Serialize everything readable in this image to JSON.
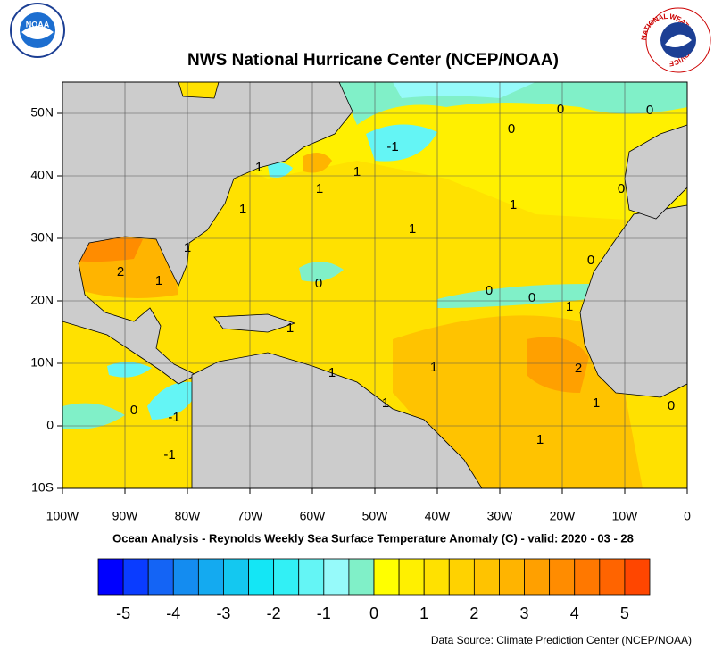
{
  "map": {
    "title": "NWS National Hurricane Center (NCEP/NOAA)",
    "subtitle": "Ocean Analysis - Reynolds Weekly Sea Surface Temperature Anomaly (C) - valid: 2020 - 03 - 28",
    "source": "Data Source: Climate Prediction Center (NCEP/NOAA)",
    "logo_left": "NOAA",
    "logo_right": "NATIONAL WEATHER SERVICE",
    "xlim": [
      -100,
      0
    ],
    "ylim": [
      -10,
      55
    ],
    "xticks": [
      {
        "value": -100,
        "label": "100W"
      },
      {
        "value": -90,
        "label": "90W"
      },
      {
        "value": -80,
        "label": "80W"
      },
      {
        "value": -70,
        "label": "70W"
      },
      {
        "value": -60,
        "label": "60W"
      },
      {
        "value": -50,
        "label": "50W"
      },
      {
        "value": -40,
        "label": "40W"
      },
      {
        "value": -30,
        "label": "30W"
      },
      {
        "value": -20,
        "label": "20W"
      },
      {
        "value": -10,
        "label": "10W"
      },
      0
    ],
    "yticks": [
      {
        "value": 50,
        "label": "50N"
      },
      {
        "value": 40,
        "label": "40N"
      },
      {
        "value": 30,
        "label": "30N"
      },
      {
        "value": 20,
        "label": "20N"
      },
      {
        "value": 10,
        "label": "10N"
      },
      0,
      {
        "value": -10,
        "label": "10S"
      }
    ],
    "grid": true,
    "land_color": "#cccccc",
    "colorbar": {
      "ticks": [
        -5,
        -4,
        -3,
        -2,
        -1,
        0,
        1,
        2,
        3,
        4,
        5
      ],
      "lim": [
        -5.5,
        5.5
      ],
      "colors": [
        "#0000ff",
        "#0a3cff",
        "#1464f5",
        "#148cf0",
        "#14aaf0",
        "#14c8f0",
        "#14e6f5",
        "#32f0f5",
        "#64f5f5",
        "#96fafa",
        "#80f0c8",
        "#ffff00",
        "#fff000",
        "#ffe100",
        "#ffd200",
        "#ffc300",
        "#ffb400",
        "#ffa000",
        "#ff8c00",
        "#ff7800",
        "#ff6400",
        "#ff4600"
      ]
    },
    "contour_labels": [
      2,
      1,
      1,
      1,
      1,
      1,
      1,
      -1,
      0,
      1,
      1,
      0,
      0,
      0,
      0,
      0,
      0,
      0,
      1,
      1,
      1,
      1,
      1,
      2,
      0,
      -1,
      1,
      0,
      1,
      -1
    ]
  }
}
